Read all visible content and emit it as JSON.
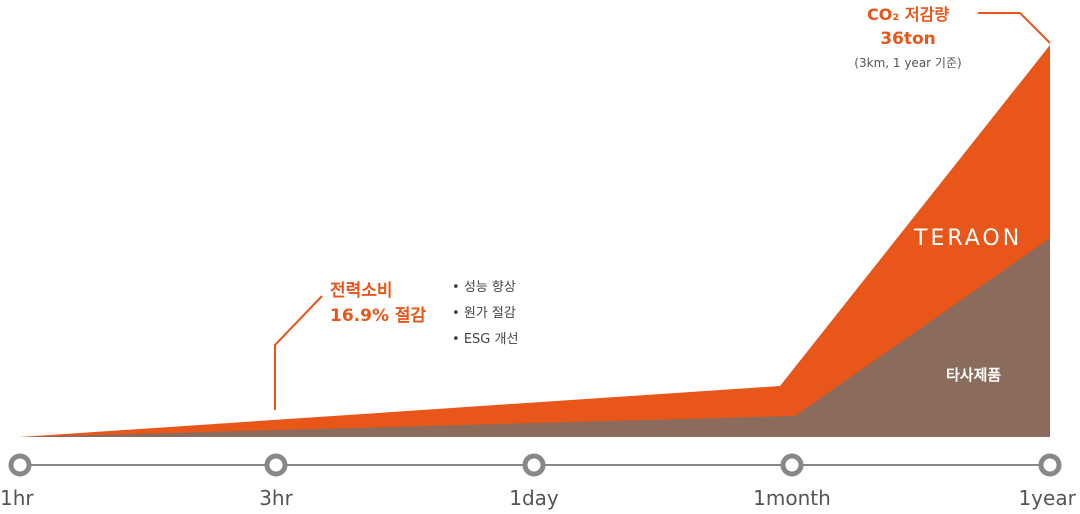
{
  "chart_data": {
    "type": "area",
    "categories": [
      "1hr",
      "3hr",
      "1day",
      "1month",
      "1year"
    ],
    "series": [
      {
        "name": "TERAON",
        "color": "#e9561a"
      },
      {
        "name": "타사제품",
        "color": "#8a6b5c"
      }
    ],
    "annotations": {
      "power_saving": {
        "line1": "전력소비",
        "line2": "16.9% 절감"
      },
      "benefits": [
        "성능 향상",
        "원가 절감",
        "ESG 개선"
      ],
      "co2": {
        "line1": "CO₂ 저감량",
        "line2": "36ton",
        "line3": "(3km, 1 year 기준)"
      }
    },
    "grid": false
  },
  "colors": {
    "accent": "#e9561a",
    "competitor": "#8a6b5c",
    "axis": "#888888",
    "axis_marker": "#888888"
  }
}
